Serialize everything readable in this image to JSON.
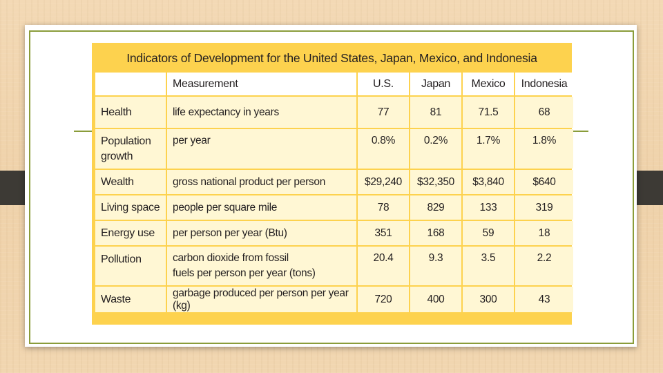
{
  "colors": {
    "frame_green": "#8a9c3a",
    "table_yellow": "#fdd24e",
    "cell_cream": "#fff7d4",
    "tab_dark": "#3d3a35"
  },
  "table": {
    "title": "Indicators of Development for the United States, Japan, Mexico, and Indonesia",
    "columns": [
      "",
      "Measurement",
      "U.S.",
      "Japan",
      "Mexico",
      "Indonesia"
    ],
    "rows": [
      {
        "category": "Health",
        "measurement": "life expectancy in years",
        "us": "77",
        "japan": "81",
        "mexico": "71.5",
        "indonesia": "68"
      },
      {
        "category_line1": "Population",
        "category_line2": "growth",
        "measurement": "per year",
        "us": "0.8%",
        "japan": "0.2%",
        "mexico": "1.7%",
        "indonesia": "1.8%"
      },
      {
        "category": "Wealth",
        "measurement": "gross national product per person",
        "us": "$29,240",
        "japan": "$32,350",
        "mexico": "$3,840",
        "indonesia": "$640"
      },
      {
        "category": "Living space",
        "measurement": "people per square mile",
        "us": "78",
        "japan": "829",
        "mexico": "133",
        "indonesia": "319"
      },
      {
        "category": "Energy use",
        "measurement": "per person per year (Btu)",
        "us": "351",
        "japan": "168",
        "mexico": "59",
        "indonesia": "18"
      },
      {
        "category": "Pollution",
        "measurement_line1": "carbon dioxide from fossil",
        "measurement_line2": "fuels per person per year (tons)",
        "us": "20.4",
        "japan": "9.3",
        "mexico": "3.5",
        "indonesia": "2.2"
      },
      {
        "category": "Waste",
        "measurement": "garbage produced per person per year (kg)",
        "us": "720",
        "japan": "400",
        "mexico": "300",
        "indonesia": "43"
      }
    ]
  }
}
